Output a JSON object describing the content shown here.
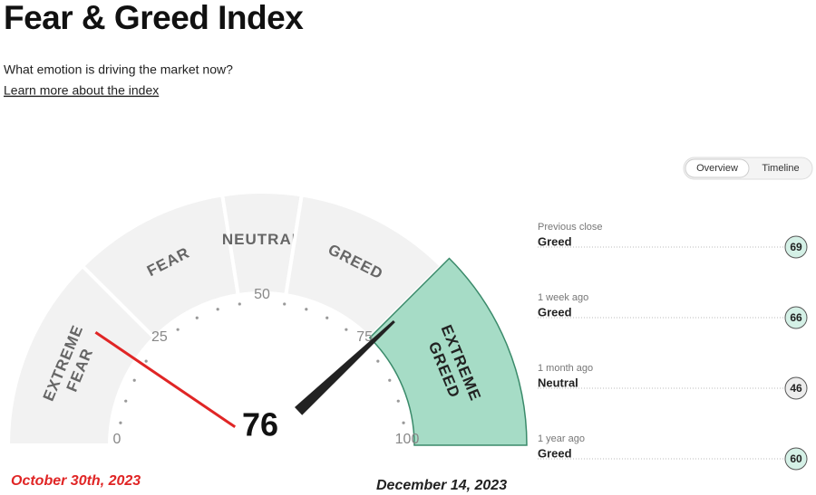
{
  "header": {
    "title": "Fear & Greed Index",
    "subtitle": "What emotion is driving the market now?",
    "link": "Learn more about the index"
  },
  "tabs": [
    "Overview",
    "Timeline"
  ],
  "chart_data": {
    "type": "gauge",
    "lim": [
      0,
      100
    ],
    "ticks": [
      0,
      25,
      50,
      75,
      100
    ],
    "bands": [
      {
        "label": [
          "EXTREME",
          "FEAR"
        ],
        "from": 0,
        "to": 25,
        "color": "#f2f2f2"
      },
      {
        "label": [
          "FEAR"
        ],
        "from": 25,
        "to": 45,
        "color": "#f2f2f2"
      },
      {
        "label": [
          "NEUTRAL"
        ],
        "from": 45,
        "to": 55,
        "color": "#f2f2f2"
      },
      {
        "label": [
          "GREED"
        ],
        "from": 55,
        "to": 75,
        "color": "#f2f2f2"
      },
      {
        "label": [
          "EXTREME",
          "GREED"
        ],
        "from": 75,
        "to": 100,
        "color": "#a6dcc6"
      }
    ],
    "needles": [
      {
        "label": "October 30th, 2023",
        "value": 19,
        "color": "#e02525"
      },
      {
        "label": "December 14, 2023",
        "value": 76,
        "color": "#222222"
      }
    ]
  },
  "history": [
    {
      "label": "Previous close",
      "rating": "Greed",
      "value": 69,
      "color": "#d4f0e6"
    },
    {
      "label": "1 week ago",
      "rating": "Greed",
      "value": 66,
      "color": "#d4f0e6"
    },
    {
      "label": "1 month ago",
      "rating": "Neutral",
      "value": 46,
      "color": "#ececec"
    },
    {
      "label": "1 year ago",
      "rating": "Greed",
      "value": 60,
      "color": "#d4f0e6"
    }
  ]
}
